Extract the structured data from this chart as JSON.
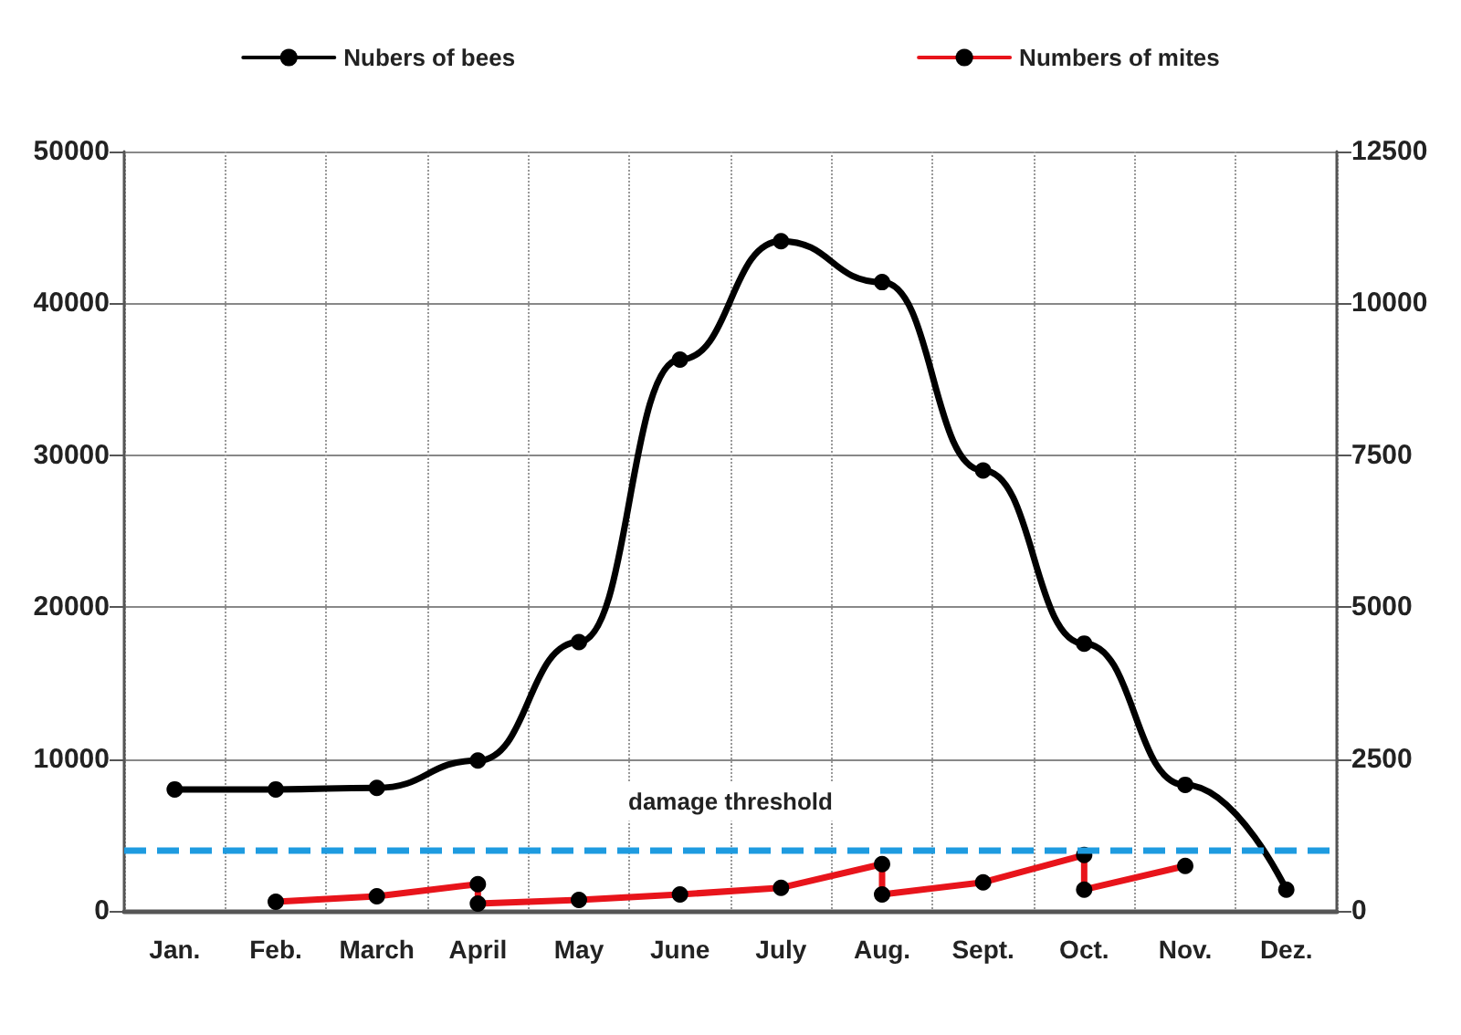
{
  "chart_data": {
    "type": "line",
    "categories": [
      "Jan.",
      "Feb.",
      "March",
      "April",
      "May",
      "June",
      "July",
      "Aug.",
      "Sept.",
      "Oct.",
      "Nov.",
      "Dez."
    ],
    "series": [
      {
        "name": "Nubers of bees",
        "color": "#000000",
        "values": [
          8000,
          8000,
          8100,
          9900,
          17700,
          36300,
          44100,
          41400,
          29000,
          17600,
          8300,
          1400
        ]
      },
      {
        "name": "Numbers of mites",
        "color": "#e8141b",
        "axis": "y2",
        "x": [
          "Feb.",
          "March",
          "April",
          "April",
          "May",
          "June",
          "July",
          "Aug.",
          "Aug.",
          "Sept.",
          "Oct.",
          "Oct.",
          "Nov."
        ],
        "values": [
          150,
          240,
          440,
          120,
          180,
          270,
          380,
          770,
          270,
          470,
          920,
          350,
          740
        ]
      }
    ],
    "ylim": [
      0,
      50000
    ],
    "yticks": [
      0,
      10000,
      20000,
      30000,
      40000,
      50000
    ],
    "y2lim": [
      0,
      12500
    ],
    "y2ticks": [
      0,
      2500,
      5000,
      7500,
      10000,
      12500
    ],
    "ref_lines": [
      {
        "axis": "y",
        "value": 4000,
        "label": "damage threshold",
        "color": "#1e9be0",
        "line_style": "dashed"
      }
    ],
    "grid": true,
    "legend": "top",
    "marker": "circle",
    "line_style": "solid"
  }
}
